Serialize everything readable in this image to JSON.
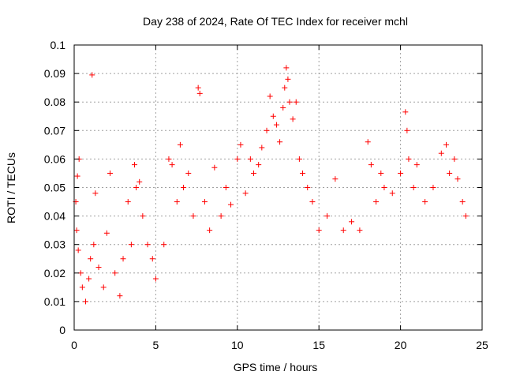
{
  "chart_data": {
    "type": "scatter",
    "title": "Day 238 of 2024, Rate Of TEC Index for receiver mchl",
    "xlabel": "GPS time / hours",
    "ylabel": "ROTI / TECUs",
    "xlim": [
      0,
      25
    ],
    "ylim": [
      0,
      0.1
    ],
    "xticks": [
      "0",
      "5",
      "10",
      "15",
      "20",
      "25"
    ],
    "yticks": [
      "0",
      "0.01",
      "0.02",
      "0.03",
      "0.04",
      "0.05",
      "0.06",
      "0.07",
      "0.08",
      "0.09",
      "0.1"
    ],
    "grid": true,
    "marker": "+",
    "color": "#ff0000",
    "series": [
      {
        "points": [
          [
            0.1,
            0.045
          ],
          [
            0.2,
            0.054
          ],
          [
            0.3,
            0.06
          ],
          [
            0.15,
            0.035
          ],
          [
            0.25,
            0.028
          ],
          [
            0.4,
            0.02
          ],
          [
            0.5,
            0.015
          ],
          [
            0.7,
            0.01
          ],
          [
            0.9,
            0.018
          ],
          [
            1.0,
            0.025
          ],
          [
            1.1,
            0.0895
          ],
          [
            1.2,
            0.03
          ],
          [
            1.3,
            0.048
          ],
          [
            1.5,
            0.022
          ],
          [
            1.8,
            0.015
          ],
          [
            2.0,
            0.034
          ],
          [
            2.2,
            0.055
          ],
          [
            2.5,
            0.02
          ],
          [
            2.8,
            0.012
          ],
          [
            3.0,
            0.025
          ],
          [
            3.3,
            0.045
          ],
          [
            3.5,
            0.03
          ],
          [
            3.7,
            0.058
          ],
          [
            3.8,
            0.05
          ],
          [
            4.0,
            0.052
          ],
          [
            4.2,
            0.04
          ],
          [
            4.5,
            0.03
          ],
          [
            4.8,
            0.025
          ],
          [
            5.0,
            0.018
          ],
          [
            5.5,
            0.03
          ],
          [
            5.8,
            0.06
          ],
          [
            6.0,
            0.058
          ],
          [
            6.3,
            0.045
          ],
          [
            6.5,
            0.065
          ],
          [
            6.7,
            0.05
          ],
          [
            7.0,
            0.055
          ],
          [
            7.3,
            0.04
          ],
          [
            7.6,
            0.085
          ],
          [
            7.7,
            0.083
          ],
          [
            8.0,
            0.045
          ],
          [
            8.3,
            0.035
          ],
          [
            8.6,
            0.057
          ],
          [
            9.0,
            0.04
          ],
          [
            9.3,
            0.05
          ],
          [
            9.6,
            0.044
          ],
          [
            10.0,
            0.06
          ],
          [
            10.2,
            0.065
          ],
          [
            10.5,
            0.048
          ],
          [
            10.8,
            0.06
          ],
          [
            11.0,
            0.055
          ],
          [
            11.3,
            0.058
          ],
          [
            11.5,
            0.064
          ],
          [
            11.8,
            0.07
          ],
          [
            12.0,
            0.082
          ],
          [
            12.2,
            0.075
          ],
          [
            12.4,
            0.072
          ],
          [
            12.6,
            0.066
          ],
          [
            12.8,
            0.078
          ],
          [
            12.9,
            0.085
          ],
          [
            13.0,
            0.092
          ],
          [
            13.1,
            0.088
          ],
          [
            13.2,
            0.08
          ],
          [
            13.4,
            0.074
          ],
          [
            13.6,
            0.08
          ],
          [
            13.8,
            0.06
          ],
          [
            14.0,
            0.055
          ],
          [
            14.3,
            0.05
          ],
          [
            14.6,
            0.045
          ],
          [
            15.0,
            0.035
          ],
          [
            15.5,
            0.04
          ],
          [
            16.0,
            0.053
          ],
          [
            16.5,
            0.035
          ],
          [
            17.0,
            0.038
          ],
          [
            17.5,
            0.035
          ],
          [
            18.0,
            0.066
          ],
          [
            18.2,
            0.058
          ],
          [
            18.5,
            0.045
          ],
          [
            18.8,
            0.055
          ],
          [
            19.0,
            0.05
          ],
          [
            19.5,
            0.048
          ],
          [
            20.0,
            0.055
          ],
          [
            20.3,
            0.0765
          ],
          [
            20.4,
            0.07
          ],
          [
            20.5,
            0.06
          ],
          [
            20.8,
            0.05
          ],
          [
            21.0,
            0.058
          ],
          [
            21.5,
            0.045
          ],
          [
            22.0,
            0.05
          ],
          [
            22.5,
            0.062
          ],
          [
            22.8,
            0.065
          ],
          [
            23.0,
            0.055
          ],
          [
            23.3,
            0.06
          ],
          [
            23.5,
            0.053
          ],
          [
            23.8,
            0.045
          ],
          [
            24.0,
            0.04
          ]
        ]
      }
    ]
  }
}
